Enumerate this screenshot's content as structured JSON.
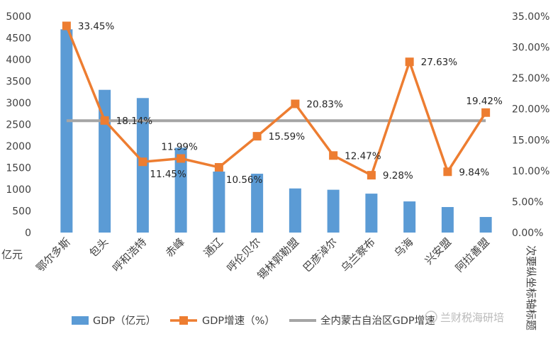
{
  "chart_data": {
    "type": "bar",
    "categories": [
      "鄂尔多斯",
      "包头",
      "呼和浩特",
      "赤峰",
      "通辽",
      "呼伦贝尔",
      "锡林郭勒盟",
      "巴彦淖尔",
      "乌兰察布",
      "乌海",
      "兴安盟",
      "阿拉善盟"
    ],
    "series": [
      {
        "name": "GDP（亿元）",
        "type": "bar",
        "axis": "left",
        "color": "#5b9bd5",
        "values": [
          4700,
          3300,
          3110,
          1960,
          1410,
          1360,
          1020,
          990,
          900,
          720,
          590,
          360
        ]
      },
      {
        "name": "GDP增速（%）",
        "type": "line",
        "axis": "right",
        "color": "#ed7d31",
        "values": [
          33.45,
          18.14,
          11.45,
          11.99,
          10.56,
          15.59,
          20.83,
          12.47,
          9.28,
          27.63,
          9.84,
          19.42
        ],
        "labels": [
          "33.45%",
          "18.14%",
          "11.45%",
          "11.99%",
          "10.56%",
          "15.59%",
          "20.83%",
          "12.47%",
          "9.28%",
          "27.63%",
          "9.84%",
          "19.42%"
        ]
      },
      {
        "name": "全内蒙古自治区GDP增速",
        "type": "reference",
        "axis": "right",
        "color": "#a5a5a5",
        "value": 18.1
      }
    ],
    "ylim": [
      0,
      5000
    ],
    "y2lim": [
      0,
      35
    ],
    "yticks": [
      "0",
      "500",
      "1000",
      "1500",
      "2000",
      "2500",
      "3000",
      "3500",
      "4000",
      "4500",
      "5000"
    ],
    "y2ticks": [
      "0.00%",
      "5.00%",
      "10.00%",
      "15.00%",
      "20.00%",
      "25.00%",
      "30.00%",
      "35.00%"
    ],
    "ylabel": "亿元",
    "y2label": "次要纵坐标轴标题",
    "legend_position": "bottom",
    "grid": false
  },
  "watermark": "兰财税海研培"
}
